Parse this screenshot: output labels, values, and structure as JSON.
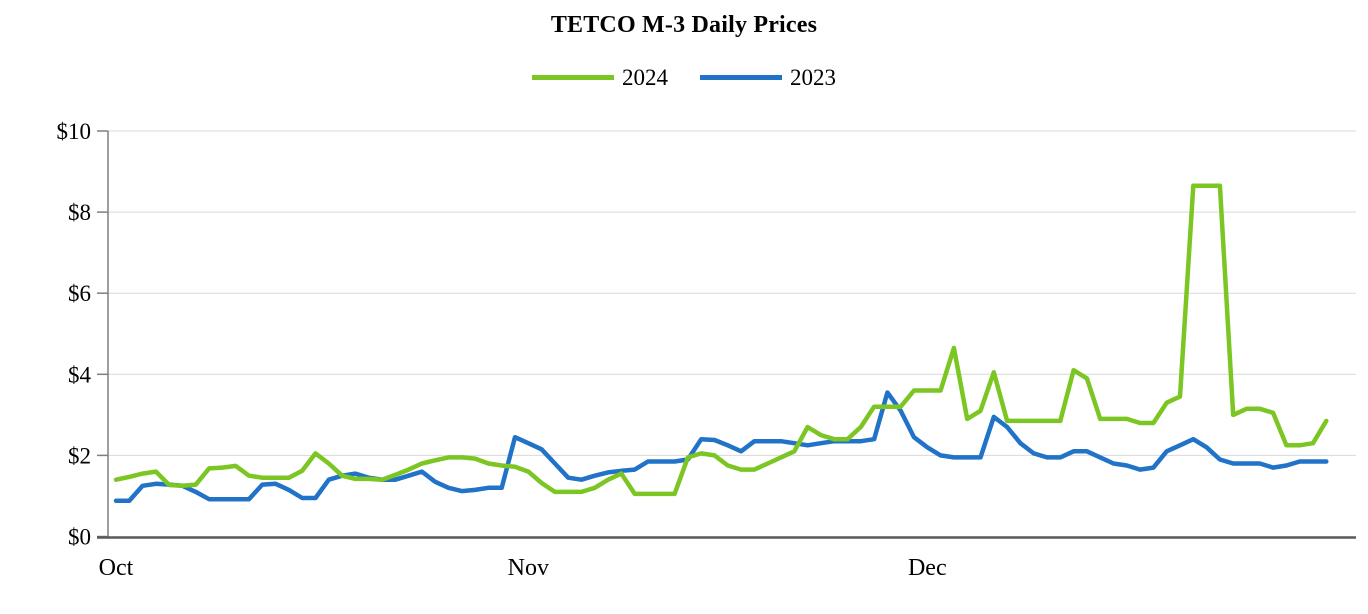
{
  "page": {
    "background": "#FFFFFF"
  },
  "chart_data": {
    "type": "line",
    "title": "TETCO M-3 Daily Prices",
    "x_axis": {
      "tick_labels": [
        "Oct",
        "Nov",
        "Dec"
      ],
      "tick_day_index": [
        0,
        31,
        61
      ],
      "description": "Daily prices from Oct 1 through Dec 31"
    },
    "y_axis": {
      "tick_labels": [
        "$0",
        "$2",
        "$4",
        "$6",
        "$8",
        "$10"
      ],
      "tick_values": [
        0,
        2,
        4,
        6,
        8,
        10
      ],
      "range": [
        0,
        10
      ],
      "unit": "USD"
    },
    "grid": "horizontal",
    "legend": {
      "position": "top",
      "entries": [
        {
          "label": "2024",
          "color": "#7CC623"
        },
        {
          "label": "2023",
          "color": "#2173C8"
        }
      ]
    },
    "series": [
      {
        "name": "2024",
        "color": "#7CC623",
        "values": [
          1.4,
          1.47,
          1.55,
          1.6,
          1.27,
          1.25,
          1.28,
          1.68,
          1.7,
          1.74,
          1.5,
          1.45,
          1.45,
          1.45,
          1.62,
          2.05,
          1.8,
          1.5,
          1.42,
          1.42,
          1.4,
          1.52,
          1.65,
          1.8,
          1.88,
          1.95,
          1.95,
          1.92,
          1.8,
          1.75,
          1.72,
          1.6,
          1.32,
          1.1,
          1.1,
          1.1,
          1.2,
          1.4,
          1.55,
          1.05,
          1.05,
          1.05,
          1.05,
          1.95,
          2.05,
          2.0,
          1.75,
          1.65,
          1.65,
          1.8,
          1.95,
          2.1,
          2.7,
          2.5,
          2.4,
          2.4,
          2.7,
          3.2,
          3.2,
          3.2,
          3.6,
          3.6,
          3.6,
          4.65,
          2.9,
          3.1,
          4.05,
          2.85,
          2.85,
          2.85,
          2.85,
          2.85,
          4.1,
          3.9,
          2.9,
          2.9,
          2.9,
          2.8,
          2.8,
          3.3,
          3.45,
          8.65,
          8.65,
          8.65,
          3.0,
          3.15,
          3.15,
          3.05,
          2.25,
          2.25,
          2.3,
          2.85
        ]
      },
      {
        "name": "2023",
        "color": "#2173C8",
        "values": [
          0.88,
          0.88,
          1.25,
          1.3,
          1.28,
          1.25,
          1.1,
          0.92,
          0.92,
          0.92,
          0.92,
          1.28,
          1.3,
          1.15,
          0.95,
          0.95,
          1.4,
          1.5,
          1.55,
          1.45,
          1.4,
          1.4,
          1.5,
          1.6,
          1.35,
          1.2,
          1.12,
          1.15,
          1.2,
          1.2,
          2.45,
          2.3,
          2.15,
          1.8,
          1.45,
          1.4,
          1.5,
          1.58,
          1.62,
          1.65,
          1.85,
          1.85,
          1.85,
          1.9,
          2.4,
          2.38,
          2.25,
          2.1,
          2.35,
          2.35,
          2.35,
          2.3,
          2.25,
          2.3,
          2.35,
          2.35,
          2.35,
          2.4,
          3.55,
          3.1,
          2.45,
          2.2,
          2.0,
          1.95,
          1.95,
          1.95,
          2.95,
          2.7,
          2.3,
          2.05,
          1.95,
          1.95,
          2.1,
          2.1,
          1.95,
          1.8,
          1.75,
          1.65,
          1.7,
          2.1,
          2.25,
          2.4,
          2.2,
          1.9,
          1.8,
          1.8,
          1.8,
          1.7,
          1.75,
          1.85,
          1.85,
          1.85
        ]
      }
    ]
  },
  "colors": {
    "gridline": "#D9D9D9",
    "x_axis_line": "#595959",
    "y_axis_line": "#7F7F7F",
    "tick_mark": "#7F7F7F",
    "label_text": "#000000"
  }
}
